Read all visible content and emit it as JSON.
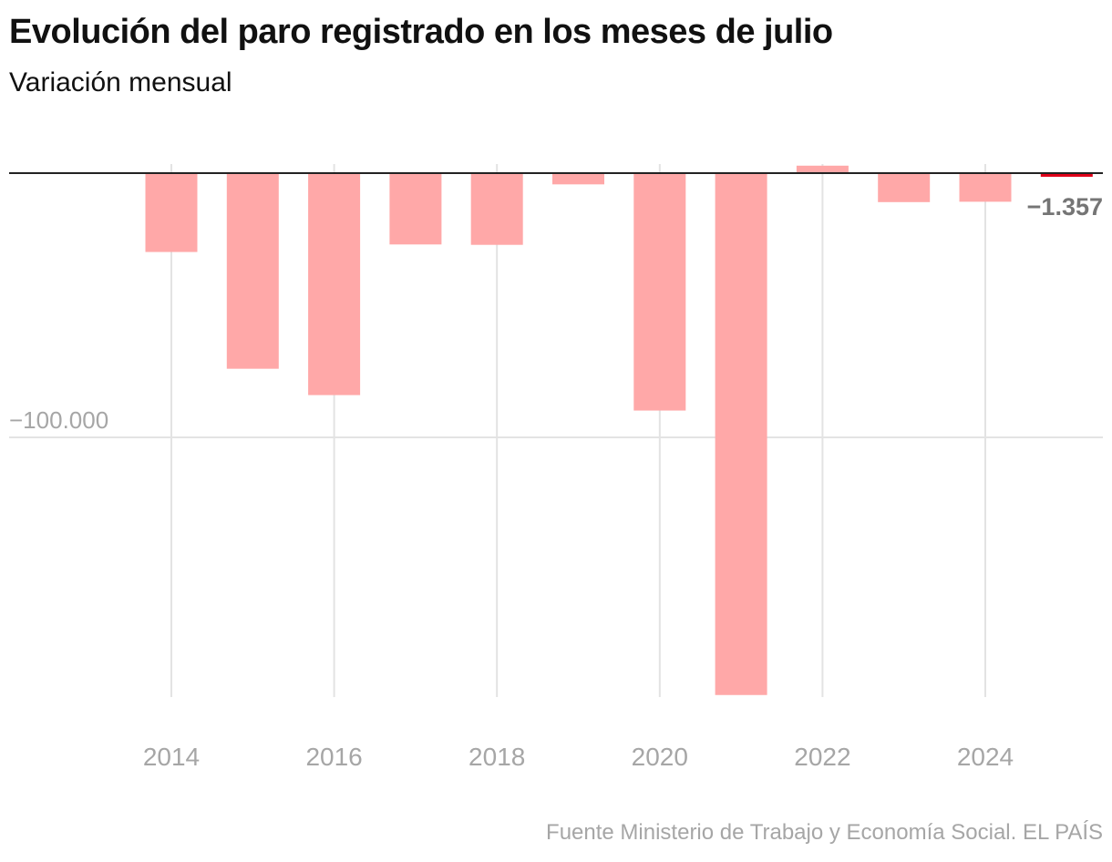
{
  "title": "Evolución del paro registrado en los meses de julio",
  "subtitle": "Variación mensual",
  "source": "Fuente Ministerio de Trabajo y Economía Social. EL PAÍS",
  "colors": {
    "bar": "#ffa8a8",
    "highlight": "#e0001a",
    "gridline": "#e3e3e3",
    "zero_line": "#222222",
    "tick_label": "#a6a6a6",
    "value_label": "#757575"
  },
  "chart_data": {
    "type": "bar",
    "categories": [
      "2014",
      "2015",
      "2016",
      "2017",
      "2018",
      "2019",
      "2020",
      "2021",
      "2022",
      "2023",
      "2024",
      "2025"
    ],
    "values": [
      -29841,
      -74028,
      -83993,
      -26995,
      -27141,
      -4253,
      -89849,
      -197496,
      2827,
      -10968,
      -10830,
      -1357
    ],
    "x_tick_labels": [
      "2014",
      "2016",
      "2018",
      "2020",
      "2022",
      "2024"
    ],
    "y_ticks": [
      {
        "value": -100000,
        "label": "−100.000"
      }
    ],
    "highlight": {
      "category": "2025",
      "label": "−1.357"
    },
    "ylim": [
      -200000,
      5000
    ],
    "grid": true
  }
}
